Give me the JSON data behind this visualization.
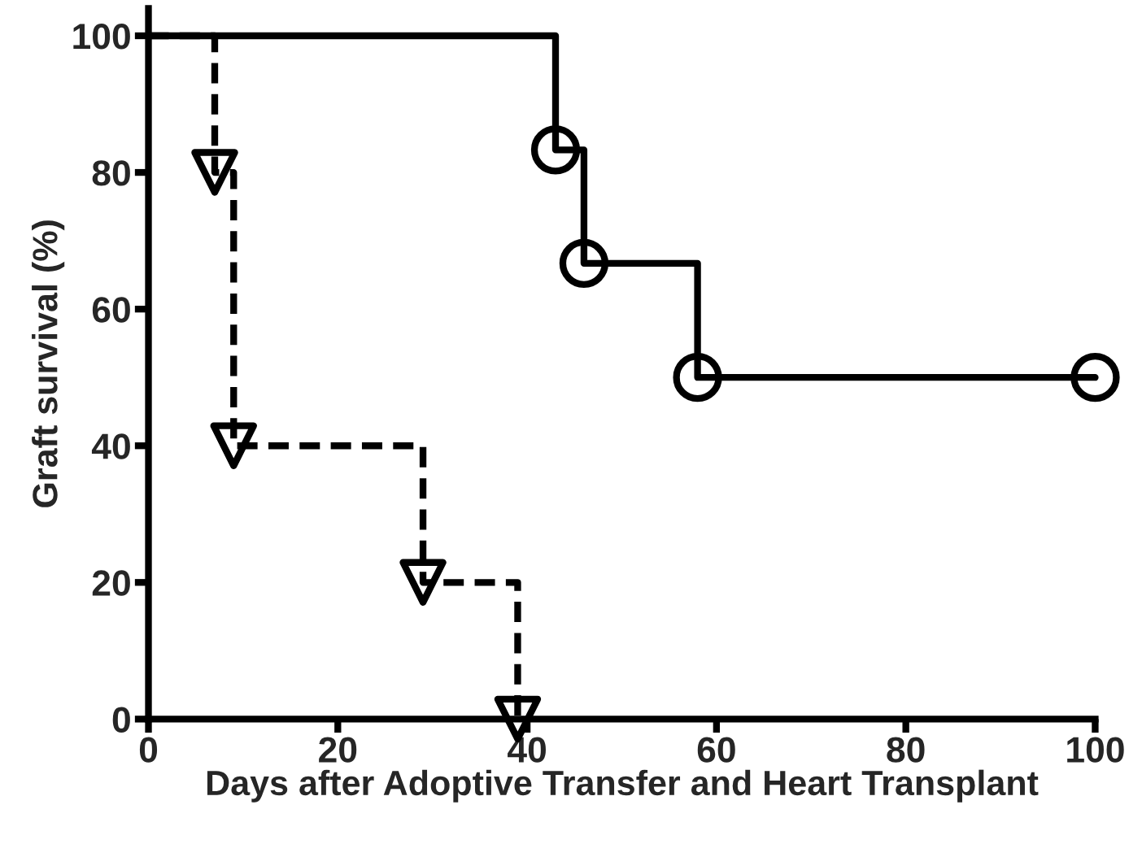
{
  "chart_data": {
    "type": "step",
    "xlabel": "Days after Adoptive Transfer and Heart Transplant",
    "ylabel": "Graft survival (%)",
    "xlim": [
      0,
      100
    ],
    "ylim": [
      0,
      104
    ],
    "xticks": [
      0,
      20,
      40,
      60,
      80,
      100
    ],
    "yticks": [
      0,
      20,
      40,
      60,
      80,
      100
    ],
    "grid": false,
    "series": [
      {
        "color": "#000000",
        "x": [
          0,
          43,
          46,
          58,
          100
        ],
        "values": [
          100,
          83.3,
          66.7,
          50,
          50
        ],
        "line_style": "solid"
      },
      {
        "color": "#000000",
        "x": [
          0,
          7,
          9,
          29,
          39
        ],
        "values": [
          100,
          80,
          40,
          20,
          0
        ],
        "line_style": "dashed"
      },
      {
        "type": "scatter",
        "color": "#000000",
        "x": [
          43,
          46,
          58,
          100
        ],
        "values": [
          83.3,
          66.7,
          50,
          50
        ],
        "marker": "circle"
      },
      {
        "type": "scatter",
        "color": "#000000",
        "x": [
          7,
          9,
          29,
          39
        ],
        "values": [
          80,
          40,
          20,
          0
        ],
        "marker": "triangle"
      }
    ]
  }
}
